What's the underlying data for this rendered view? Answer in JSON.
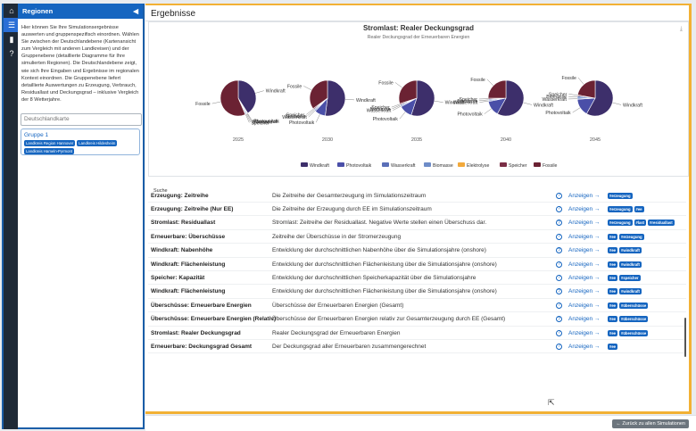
{
  "sidebar": {
    "title": "Regionen",
    "description": "Hier können Sie Ihre Simulationsergebnisse auswerten und gruppenspezifisch einordnen. Wählen Sie zwischen der Deutschlandebene (Kartenansicht zum Vergleich mit anderen Landkreisen) und der Gruppenebene (detaillierte Diagramme für Ihre simulierten Regionen). Die Deutschlandebene zeigt, wie sich Ihre Eingaben und Ergebnisse im regionalen Kontext einordnen. Die Gruppenebene liefert detaillierte Auswertungen zu Erzeugung, Verbrauch, Residuallast und Deckungsgrad – inklusive Vergleich der 8 Wetterjahre.",
    "map_input_placeholder": "Deutschlandkarte",
    "group_title": "Gruppe 1",
    "chips": [
      "Landkreis Region Hannover",
      "Landkreis Hildesheim",
      "Landkreis Hameln-Pyrmont"
    ]
  },
  "main": {
    "title": "Ergebnisse",
    "search_label": "Suche",
    "back_button": "← Zurück zu allen Simulationen"
  },
  "chart_data": {
    "type": "pie",
    "title": "Stromlast: Realer Deckungsgrad",
    "subtitle": "Realer Deckungsgrad der Erneuerbaren Energien",
    "categories": [
      "Windkraft",
      "Photovoltaik",
      "Wasserkraft",
      "Biomasse",
      "Elektrolyse",
      "Speicher",
      "Fossile"
    ],
    "colors": [
      "#3d2f6b",
      "#4a4fa8",
      "#5a6fb8",
      "#6e8cc8",
      "#f2a93b",
      "#7a2e45",
      "#6b2233"
    ],
    "pies": [
      {
        "year": "2025",
        "values": [
          41,
          0.5,
          0.5,
          1,
          0,
          0.5,
          56.5
        ]
      },
      {
        "year": "2030",
        "values": [
          52,
          10,
          1,
          1,
          0,
          1,
          35
        ]
      },
      {
        "year": "2035",
        "values": [
          55,
          12,
          1,
          1,
          0,
          1,
          30
        ]
      },
      {
        "year": "2040",
        "values": [
          58,
          14,
          1,
          1,
          0,
          1,
          25
        ]
      },
      {
        "year": "2045",
        "values": [
          58,
          16,
          1,
          2,
          0,
          1,
          22
        ]
      }
    ]
  },
  "table": {
    "link_label": "Anzeigen →",
    "help_icon": "?",
    "rows": [
      {
        "name": "Erzeugung: Zeitreihe",
        "desc": "Die Zeitreihe der Gesamterzeugung im Simulationszeitraum",
        "tags": [
          "#erzeugung"
        ]
      },
      {
        "name": "Erzeugung: Zeitreihe (Nur EE)",
        "desc": "Die Zeitreihe der Erzeugung durch EE im Simulationszeitraum",
        "tags": [
          "#erzeugung",
          "#ee"
        ]
      },
      {
        "name": "Stromlast: Residuallast",
        "desc": "Stromlast: Zeitreihe der Residuallast. Negative Werte stellen einen Überschuss dar.",
        "tags": [
          "#erzeugung",
          "#last",
          "#residuallast"
        ]
      },
      {
        "name": "Erneuerbare: Überschüsse",
        "desc": "Zeitreihe der Überschüsse in der Stromerzeugung",
        "tags": [
          "#ee",
          "#erzeugung"
        ]
      },
      {
        "name": "Windkraft: Nabenhöhe",
        "desc": "Entwicklung der durchschnittlichen Nabenhöhe über die Simulationsjahre (onshore)",
        "tags": [
          "#ee",
          "#windkraft"
        ]
      },
      {
        "name": "Windkraft: Flächenleistung",
        "desc": "Entwicklung der durchschnittlichen Flächenleistung über die Simulationsjahre (onshore)",
        "tags": [
          "#ee",
          "#windkraft"
        ]
      },
      {
        "name": "Speicher: Kapazität",
        "desc": "Entwicklung der durchschnittlichen Speicherkapazität über die Simulationsjahre",
        "tags": [
          "#ee",
          "#speicher"
        ]
      },
      {
        "name": "Windkraft: Flächenleistung",
        "desc": "Entwicklung der durchschnittlichen Flächenleistung über die Simulationsjahre (onshore)",
        "tags": [
          "#ee",
          "#windkraft"
        ]
      },
      {
        "name": "Überschüsse: Erneuerbare Energien",
        "desc": "Überschüsse der Erneuerbaren Energien (Gesamt)",
        "tags": [
          "#ee",
          "#überschüsse"
        ]
      },
      {
        "name": "Überschüsse: Erneuerbare Energien (Relativ)",
        "desc": "Überschüsse der Erneuerbaren Energien relativ zur Gesamterzeugung durch EE (Gesamt)",
        "tags": [
          "#ee",
          "#überschüsse"
        ]
      },
      {
        "name": "Stromlast: Realer Deckungsgrad",
        "desc": "Realer Deckungsgrad der Erneuerbaren Energien",
        "tags": [
          "#ee",
          "#überschüsse"
        ]
      },
      {
        "name": "Erneuerbare: Deckungsgrad Gesamt",
        "desc": "Der Deckungsgrad aller Erneuerbaren zusammengerechnet",
        "tags": [
          "#ee"
        ]
      }
    ]
  }
}
